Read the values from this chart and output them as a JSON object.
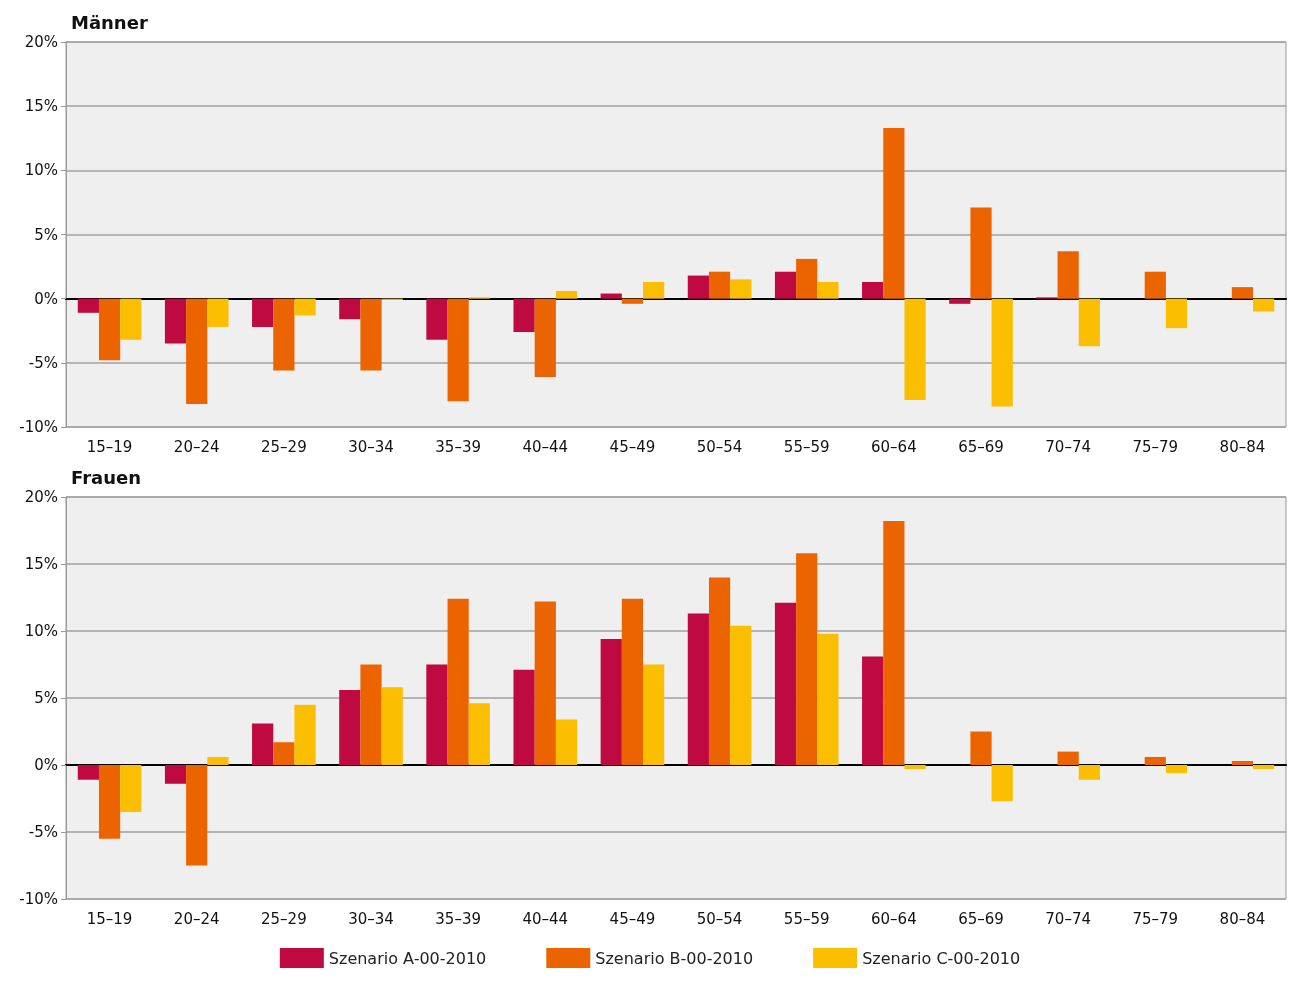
{
  "chart_data": [
    {
      "type": "bar",
      "title": "Männer",
      "categories": [
        "15–19",
        "20–24",
        "25–29",
        "30–34",
        "35–39",
        "40–44",
        "45–49",
        "50–54",
        "55–59",
        "60–64",
        "65–69",
        "70–74",
        "75–79",
        "80–84"
      ],
      "series": [
        {
          "color": "#be0a41",
          "values": [
            -1.1,
            -3.5,
            -2.2,
            -1.6,
            -3.2,
            -2.6,
            0.4,
            1.8,
            2.1,
            1.3,
            -0.4,
            0.1,
            0,
            0
          ]
        },
        {
          "color": "#ec6400",
          "values": [
            -4.8,
            -8.2,
            -5.6,
            -5.6,
            -8.0,
            -6.1,
            -0.4,
            2.1,
            3.1,
            13.3,
            7.1,
            3.7,
            2.1,
            0.9
          ]
        },
        {
          "color": "#fbbe00",
          "values": [
            -3.2,
            -2.2,
            -1.3,
            -0.1,
            0.1,
            0.6,
            1.3,
            1.5,
            1.3,
            -7.9,
            -8.4,
            -3.7,
            -2.3,
            -1.0
          ]
        }
      ],
      "ylim": [
        -10,
        20
      ],
      "yticks": [
        {
          "value": -10,
          "label": "-10%"
        },
        {
          "value": -5,
          "label": "-5%"
        },
        {
          "value": 0,
          "label": "0%"
        },
        {
          "value": 5,
          "label": "5%"
        },
        {
          "value": 10,
          "label": "10%"
        },
        {
          "value": 15,
          "label": "15%"
        },
        {
          "value": 20,
          "label": "20%"
        }
      ],
      "grid": "y",
      "legend": false
    },
    {
      "type": "bar",
      "title": "Frauen",
      "categories": [
        "15–19",
        "20–24",
        "25–29",
        "30–34",
        "35–39",
        "40–44",
        "45–49",
        "50–54",
        "55–59",
        "60–64",
        "65–69",
        "70–74",
        "75–79",
        "80–84"
      ],
      "series": [
        {
          "name": "Szenario A-00-2010",
          "color": "#be0a41",
          "values": [
            -1.1,
            -1.4,
            3.1,
            5.6,
            7.5,
            7.1,
            9.4,
            11.3,
            12.1,
            8.1,
            0,
            0,
            0,
            0
          ]
        },
        {
          "name": "Szenario B-00-2010",
          "color": "#ec6400",
          "values": [
            -5.5,
            -7.5,
            1.7,
            7.5,
            12.4,
            12.2,
            12.4,
            14.0,
            15.8,
            18.2,
            2.5,
            1.0,
            0.6,
            0.3
          ]
        },
        {
          "name": "Szenario C-00-2010",
          "color": "#fbbe00",
          "values": [
            -3.5,
            0.6,
            4.5,
            5.8,
            4.6,
            3.4,
            7.5,
            10.4,
            9.8,
            -0.3,
            -2.7,
            -1.1,
            -0.6,
            -0.3
          ]
        }
      ],
      "ylim": [
        -10,
        20
      ],
      "yticks": [
        {
          "value": -10,
          "label": "-10%"
        },
        {
          "value": -5,
          "label": "-5%"
        },
        {
          "value": 0,
          "label": "0%"
        },
        {
          "value": 5,
          "label": "5%"
        },
        {
          "value": 10,
          "label": "10%"
        },
        {
          "value": 15,
          "label": "15%"
        },
        {
          "value": 20,
          "label": "20%"
        }
      ],
      "grid": "y",
      "legend": "bottom"
    }
  ]
}
